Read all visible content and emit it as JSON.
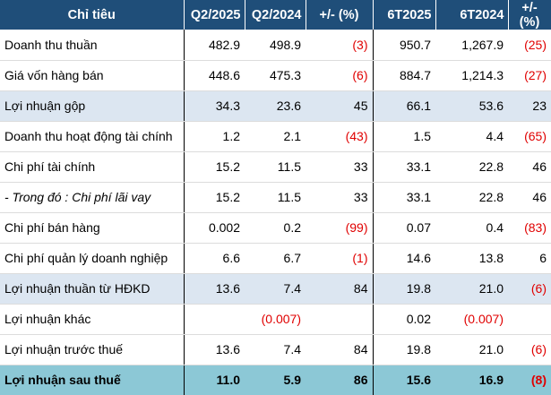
{
  "header": {
    "col0": "Chỉ tiêu",
    "col1": "Q2/2025",
    "col2": "Q2/2024",
    "col3": "+/- (%)",
    "col4": "6T2025",
    "col5": "6T2024",
    "col6": "+/- (%)"
  },
  "rows": [
    {
      "label": "Doanh thu thuần",
      "q2025": "482.9",
      "q2024": "498.9",
      "qchg": "(3)",
      "h2025": "950.7",
      "h2024": "1,267.9",
      "hchg": "(25)"
    },
    {
      "label": "Giá vốn hàng bán",
      "q2025": "448.6",
      "q2024": "475.3",
      "qchg": "(6)",
      "h2025": "884.7",
      "h2024": "1,214.3",
      "hchg": "(27)"
    },
    {
      "label": "Lợi nhuận gộp",
      "q2025": "34.3",
      "q2024": "23.6",
      "qchg": "45",
      "h2025": "66.1",
      "h2024": "53.6",
      "hchg": "23"
    },
    {
      "label": "Doanh thu hoạt động tài chính",
      "q2025": "1.2",
      "q2024": "2.1",
      "qchg": "(43)",
      "h2025": "1.5",
      "h2024": "4.4",
      "hchg": "(65)"
    },
    {
      "label": "Chi phí tài chính",
      "q2025": "15.2",
      "q2024": "11.5",
      "qchg": "33",
      "h2025": "33.1",
      "h2024": "22.8",
      "hchg": "46"
    },
    {
      "label": "- Trong đó : Chi phí lãi vay",
      "q2025": "15.2",
      "q2024": "11.5",
      "qchg": "33",
      "h2025": "33.1",
      "h2024": "22.8",
      "hchg": "46"
    },
    {
      "label": "Chi phí bán hàng",
      "q2025": "0.002",
      "q2024": "0.2",
      "qchg": "(99)",
      "h2025": "0.07",
      "h2024": "0.4",
      "hchg": "(83)"
    },
    {
      "label": "Chi phí quản lý doanh nghiệp",
      "q2025": "6.6",
      "q2024": "6.7",
      "qchg": "(1)",
      "h2025": "14.6",
      "h2024": "13.8",
      "hchg": "6"
    },
    {
      "label": "Lợi nhuận thuần từ HĐKD",
      "q2025": "13.6",
      "q2024": "7.4",
      "qchg": "84",
      "h2025": "19.8",
      "h2024": "21.0",
      "hchg": "(6)"
    },
    {
      "label": "Lợi nhuận khác",
      "q2025": "",
      "q2024": "(0.007)",
      "qchg": "",
      "h2025": "0.02",
      "h2024": "(0.007)",
      "hchg": ""
    },
    {
      "label": "Lợi nhuận trước thuế",
      "q2025": "13.6",
      "q2024": "7.4",
      "qchg": "84",
      "h2025": "19.8",
      "h2024": "21.0",
      "hchg": "(6)"
    },
    {
      "label": "Lợi nhuận sau thuế",
      "q2025": "11.0",
      "q2024": "5.9",
      "qchg": "86",
      "h2025": "15.6",
      "h2024": "16.9",
      "hchg": "(8)"
    }
  ],
  "colors": {
    "header_bg": "#1f4e79",
    "shade_bg": "#dce6f1",
    "total_bg": "#8cc8d6",
    "negative": "#e00000"
  }
}
